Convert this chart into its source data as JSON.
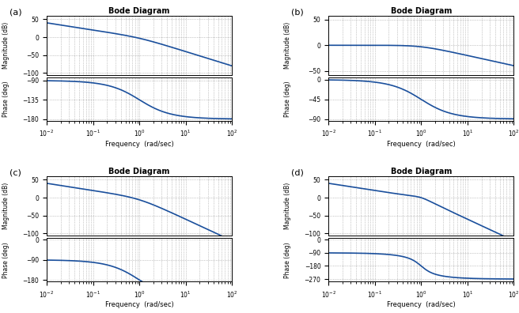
{
  "title": "Bode Diagram",
  "freq_range": [
    0.01,
    100
  ],
  "line_color": "#1a4f9c",
  "line_width": 1.2,
  "grid_color": "#999999",
  "panels": [
    {
      "label": "(a)",
      "tf_num": [
        1.0
      ],
      "tf_den": [
        1.0,
        1.0,
        0.0
      ],
      "mag_ylim": [
        -105,
        60
      ],
      "mag_yticks": [
        -100,
        -50,
        0,
        50
      ],
      "phase_ylim": [
        -185,
        -83
      ],
      "phase_yticks": [
        -180,
        -135,
        -90
      ]
    },
    {
      "label": "(b)",
      "tf_num": [
        1.0
      ],
      "tf_den": [
        1.0,
        1.0
      ],
      "mag_ylim": [
        -58,
        58
      ],
      "mag_yticks": [
        -50,
        0,
        50
      ],
      "phase_ylim": [
        -95,
        5
      ],
      "phase_yticks": [
        -90,
        -45,
        0
      ]
    },
    {
      "label": "(c)",
      "tf_num": [
        1.0
      ],
      "tf_den": [
        1.0,
        2.0,
        1.0,
        0.0
      ],
      "mag_ylim": [
        -105,
        60
      ],
      "mag_yticks": [
        -100,
        -50,
        0,
        50
      ],
      "phase_ylim": [
        -188,
        8
      ],
      "phase_yticks": [
        -180,
        -90,
        0
      ]
    },
    {
      "label": "(d)",
      "tf_num": [
        1.0
      ],
      "tf_den": [
        1.0,
        1.0,
        1.0,
        0.0
      ],
      "mag_ylim": [
        -105,
        60
      ],
      "mag_yticks": [
        -100,
        -50,
        0,
        50
      ],
      "phase_ylim": [
        -288,
        12
      ],
      "phase_yticks": [
        -270,
        -180,
        -90,
        0
      ]
    }
  ]
}
